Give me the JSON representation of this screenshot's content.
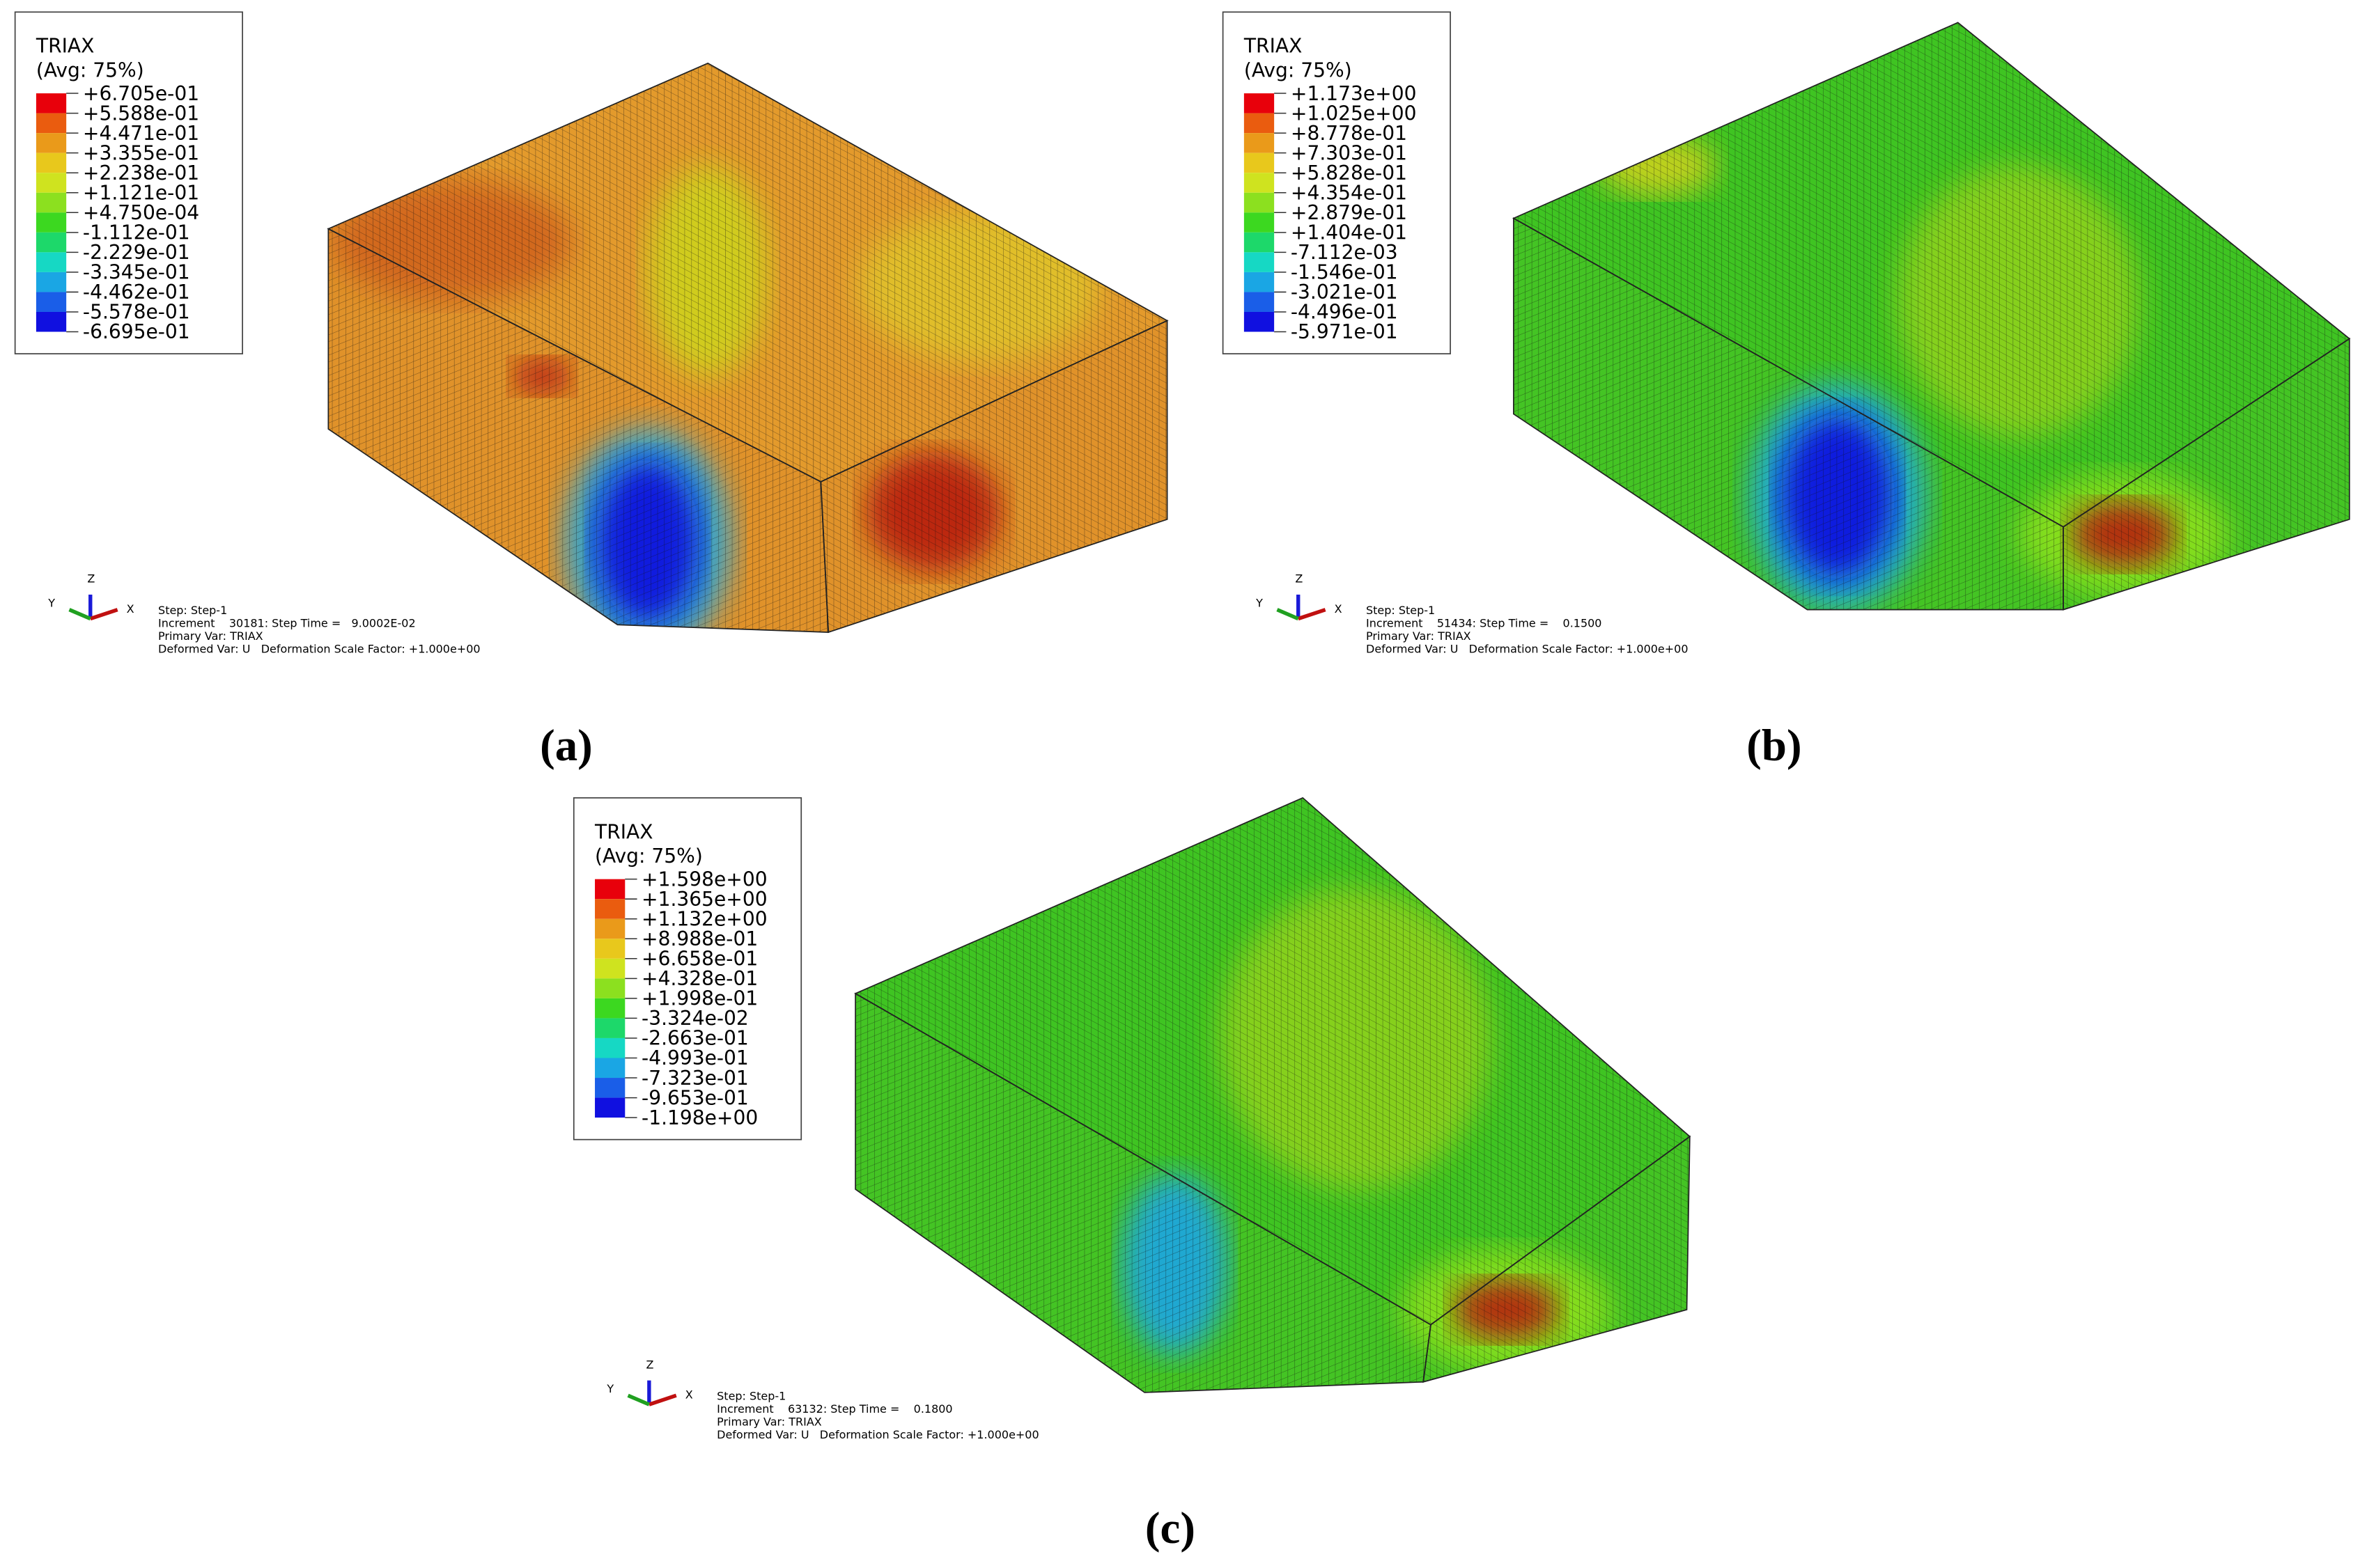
{
  "panels": [
    {
      "legend": {
        "title": "TRIAX",
        "subtitle": "(Avg: 75%)",
        "labels": [
          "+6.705e-01",
          "+5.588e-01",
          "+4.471e-01",
          "+3.355e-01",
          "+2.238e-01",
          "+1.121e-01",
          "+4.750e-04",
          "-1.112e-01",
          "-2.229e-01",
          "-3.345e-01",
          "-4.462e-01",
          "-5.578e-01",
          "-6.695e-01"
        ]
      },
      "info": [
        "Step: Step-1",
        "Increment    30181: Step Time =   9.0002E-02",
        "Primary Var: TRIAX",
        "Deformed Var: U   Deformation Scale Factor: +1.000e+00"
      ],
      "triad": {
        "x": "X",
        "y": "Y",
        "z": "Z"
      },
      "caption": "(a)"
    },
    {
      "legend": {
        "title": "TRIAX",
        "subtitle": "(Avg: 75%)",
        "labels": [
          "+1.173e+00",
          "+1.025e+00",
          "+8.778e-01",
          "+7.303e-01",
          "+5.828e-01",
          "+4.354e-01",
          "+2.879e-01",
          "+1.404e-01",
          "-7.112e-03",
          "-1.546e-01",
          "-3.021e-01",
          "-4.496e-01",
          "-5.971e-01"
        ]
      },
      "info": [
        "Step: Step-1",
        "Increment    51434: Step Time =    0.1500",
        "Primary Var: TRIAX",
        "Deformed Var: U   Deformation Scale Factor: +1.000e+00"
      ],
      "triad": {
        "x": "X",
        "y": "Y",
        "z": "Z"
      },
      "caption": "(b)"
    },
    {
      "legend": {
        "title": "TRIAX",
        "subtitle": "(Avg: 75%)",
        "labels": [
          "+1.598e+00",
          "+1.365e+00",
          "+1.132e+00",
          "+8.988e-01",
          "+6.658e-01",
          "+4.328e-01",
          "+1.998e-01",
          "-3.324e-02",
          "-2.663e-01",
          "-4.993e-01",
          "-7.323e-01",
          "-9.653e-01",
          "-1.198e+00"
        ]
      },
      "info": [
        "Step: Step-1",
        "Increment    63132: Step Time =    0.1800",
        "Primary Var: TRIAX",
        "Deformed Var: U   Deformation Scale Factor: +1.000e+00"
      ],
      "triad": {
        "x": "X",
        "y": "Y",
        "z": "Z"
      },
      "caption": "(c)"
    }
  ]
}
